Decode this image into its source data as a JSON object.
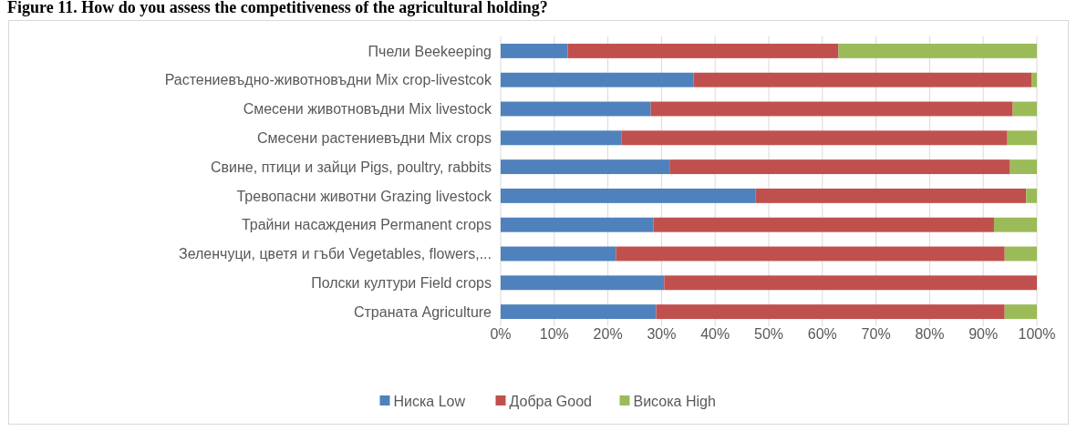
{
  "chart_data": {
    "type": "bar",
    "orientation": "horizontal",
    "stacked": true,
    "title": "Figure 11. How do you assess the competitiveness of the agricultural holding?",
    "categories": [
      "Пчели Beekeeping",
      "Растениевъдно-животновъдни Mix crop-livestcok",
      "Смесени животновъдни Mix livestock",
      "Смесени растениевъдни Mix crops",
      "Свине, птици и зайци Pigs, poultry, rabbits",
      "Тревопасни животни Grazing livestock",
      "Трайни насаждения Permanent crops",
      "Зеленчуци, цветя и гъби Vegetables, flowers,...",
      "Полски култури Field crops",
      "Страната Agriculture"
    ],
    "series": [
      {
        "name": "Ниска Low",
        "color": "#4f81bd",
        "values": [
          12.5,
          36,
          28,
          22.5,
          31.5,
          47.5,
          28.5,
          21.5,
          30.5,
          29
        ]
      },
      {
        "name": "Добра Good",
        "color": "#c0504d",
        "values": [
          50.5,
          63,
          67.5,
          72,
          63.5,
          50.5,
          63.5,
          72.5,
          69.5,
          65
        ]
      },
      {
        "name": "Висока High",
        "color": "#9bbb59",
        "values": [
          37,
          1,
          4.5,
          5.5,
          5,
          2,
          8,
          6,
          0,
          6
        ]
      }
    ],
    "xlim": [
      0,
      100
    ],
    "xticks": [
      {
        "value": 0,
        "label": "0%"
      },
      {
        "value": 10,
        "label": "10%"
      },
      {
        "value": 20,
        "label": "20%"
      },
      {
        "value": 30,
        "label": "30%"
      },
      {
        "value": 40,
        "label": "40%"
      },
      {
        "value": 50,
        "label": "50%"
      },
      {
        "value": 60,
        "label": "60%"
      },
      {
        "value": 70,
        "label": "70%"
      },
      {
        "value": 80,
        "label": "80%"
      },
      {
        "value": 90,
        "label": "90%"
      },
      {
        "value": 100,
        "label": "100%"
      }
    ],
    "grid": "x",
    "legend": "bottom"
  }
}
